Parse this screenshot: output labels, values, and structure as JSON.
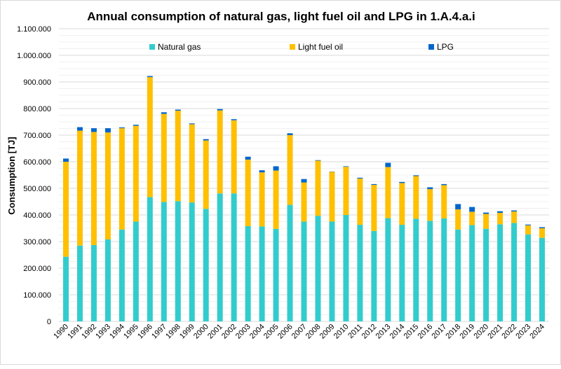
{
  "chart_data": {
    "type": "bar",
    "stacked": true,
    "title": "Annual consumption of natural gas, light fuel oil and LPG in 1.A.4.a.i",
    "xlabel": "",
    "ylabel": "Consumption [TJ]",
    "ylim": [
      0,
      1100000
    ],
    "ytick_step": 100000,
    "yticks": [
      "0",
      "100.000",
      "200.000",
      "300.000",
      "400.000",
      "500.000",
      "600.000",
      "700.000",
      "800.000",
      "900.000",
      "1.000.000",
      "1.100.000"
    ],
    "grid": true,
    "legend_position": "top",
    "categories": [
      "1990",
      "1991",
      "1992",
      "1993",
      "1994",
      "1995",
      "1996",
      "1997",
      "1998",
      "1999",
      "2000",
      "2001",
      "2002",
      "2003",
      "2004",
      "2005",
      "2006",
      "2007",
      "2008",
      "2009",
      "2010",
      "2011",
      "2012",
      "2013",
      "2014",
      "2015",
      "2016",
      "2017",
      "2018",
      "2019",
      "2020",
      "2021",
      "2022",
      "2023",
      "2024"
    ],
    "series": [
      {
        "name": "Natural gas",
        "color": "#33cccc",
        "values": [
          243000,
          285000,
          287000,
          308000,
          345000,
          375000,
          467000,
          449000,
          452000,
          447000,
          423000,
          481000,
          481000,
          358000,
          357000,
          348000,
          438000,
          375000,
          397000,
          375000,
          400000,
          363000,
          340000,
          388000,
          363000,
          386000,
          378000,
          387000,
          345000,
          362000,
          348000,
          365000,
          370000,
          327000,
          314000
        ]
      },
      {
        "name": "Light fuel oil",
        "color": "#ffc000",
        "values": [
          357000,
          432000,
          425000,
          402000,
          381000,
          360000,
          451000,
          331000,
          340000,
          294000,
          257000,
          312000,
          275000,
          250000,
          203000,
          219000,
          262000,
          147000,
          207000,
          187000,
          181000,
          174000,
          173000,
          192000,
          157000,
          160000,
          119000,
          125000,
          76000,
          50000,
          56000,
          43000,
          43000,
          34000,
          36000
        ]
      },
      {
        "name": "LPG",
        "color": "#0066cc",
        "values": [
          12000,
          13000,
          14000,
          16000,
          3000,
          4000,
          4000,
          6000,
          4000,
          3000,
          5000,
          5000,
          4000,
          11000,
          8000,
          16000,
          7000,
          13000,
          2000,
          1000,
          2000,
          3000,
          3000,
          16000,
          4000,
          3000,
          7000,
          4000,
          20000,
          18000,
          5000,
          6000,
          4000,
          3000,
          4000
        ]
      }
    ]
  }
}
